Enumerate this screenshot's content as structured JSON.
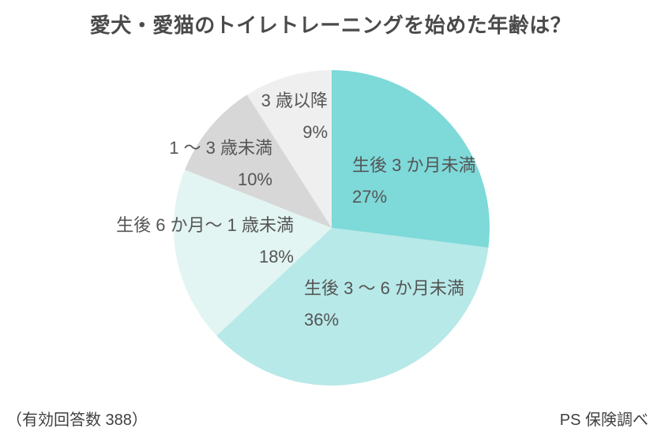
{
  "chart_data": {
    "type": "pie",
    "title": "愛犬・愛猫のトイレトレーニングを始めた年齢は？",
    "valid_responses": 388,
    "start_angle_deg": 0,
    "direction": "clockwise",
    "legend_position": "none",
    "label_text_color": "#555555",
    "slices": [
      {
        "label": "生後 3 か月未満",
        "value": 27,
        "percent_label": "27%",
        "color": "#7ed9d9"
      },
      {
        "label": "生後 3 〜 6 か月未満",
        "value": 36,
        "percent_label": "36%",
        "color": "#b7e9e8"
      },
      {
        "label": "生後 6 か月〜 1 歳未満",
        "value": 18,
        "percent_label": "18%",
        "color": "#e2f5f2"
      },
      {
        "label": "1 〜 3 歳未満",
        "value": 10,
        "percent_label": "10%",
        "color": "#d7d7d7"
      },
      {
        "label": "3 歳以降",
        "value": 9,
        "percent_label": "9%",
        "color": "#efefef"
      }
    ]
  },
  "footer": {
    "valid_responses_note": "（有効回答数 388）",
    "source": "PS 保険調べ"
  }
}
